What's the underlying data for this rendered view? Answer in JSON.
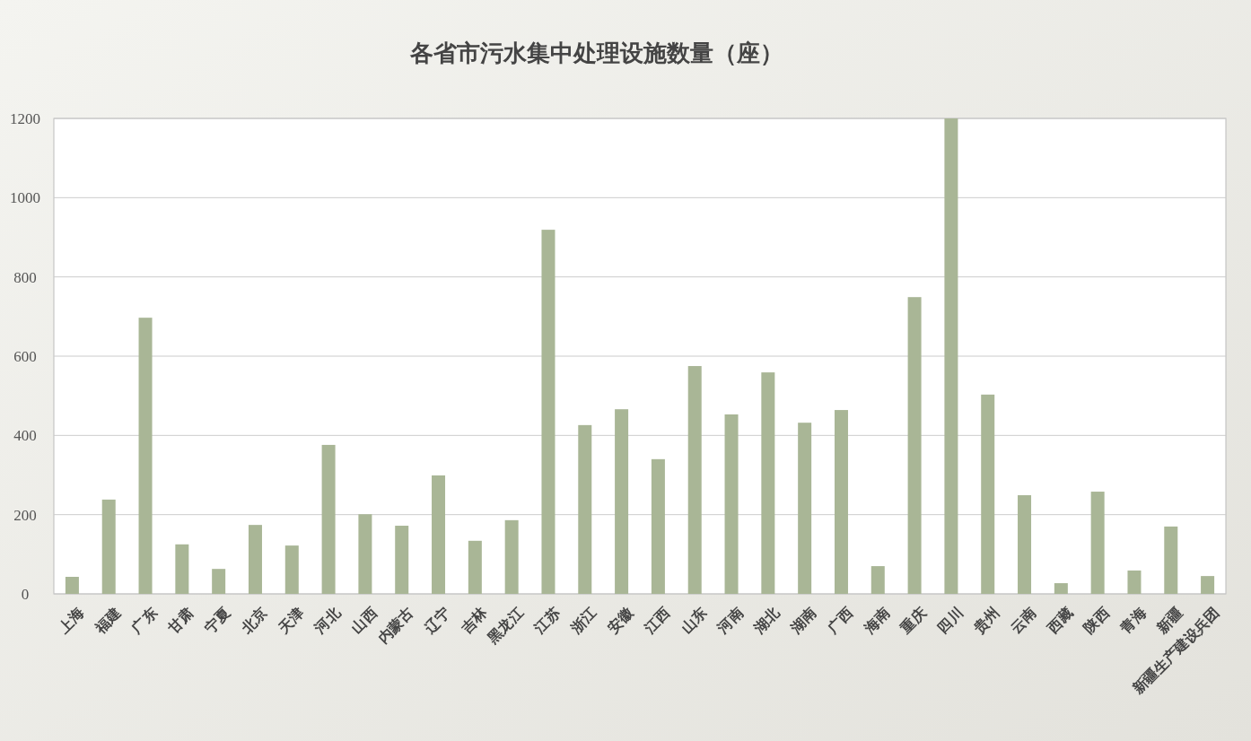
{
  "chart_data": {
    "type": "bar",
    "title": "各省市污水集中处理设施数量（座）",
    "categories": [
      "上海",
      "福建",
      "广东",
      "甘肃",
      "宁夏",
      "北京",
      "天津",
      "河北",
      "山西",
      "内蒙古",
      "辽宁",
      "吉林",
      "黑龙江",
      "江苏",
      "浙江",
      "安徽",
      "江西",
      "山东",
      "河南",
      "湖北",
      "湖南",
      "广西",
      "海南",
      "重庆",
      "四川",
      "贵州",
      "云南",
      "西藏",
      "陕西",
      "青海",
      "新疆",
      "新疆生产建设兵团"
    ],
    "values": [
      43,
      238,
      697,
      125,
      63,
      174,
      122,
      376,
      201,
      172,
      299,
      134,
      186,
      919,
      426,
      466,
      340,
      575,
      453,
      559,
      432,
      464,
      70,
      749,
      1200,
      503,
      249,
      27,
      258,
      59,
      170,
      45
    ],
    "color": "#a9b696",
    "ylim": [
      0,
      1200
    ],
    "yticks": [
      0,
      200,
      400,
      600,
      800,
      1000,
      1200
    ],
    "grid": "y"
  }
}
